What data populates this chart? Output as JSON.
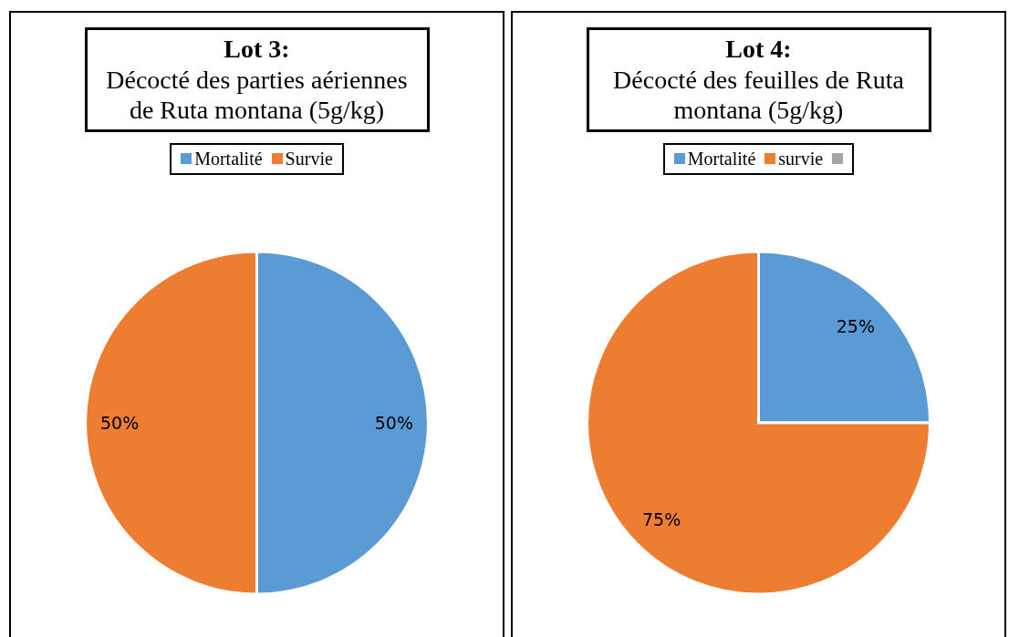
{
  "chart_data": [
    {
      "type": "pie",
      "title": "Lot 3:",
      "subtitle": "Décocté des parties aériennes de Ruta montana (5g/kg)",
      "categories": [
        "Mortalité",
        "Survie"
      ],
      "values": [
        50,
        50
      ],
      "colors": [
        "#5b9bd5",
        "#ed7d31"
      ],
      "value_labels": [
        "50%",
        "50%"
      ],
      "legend": "top"
    },
    {
      "type": "pie",
      "title": "Lot 4:",
      "subtitle": "Décocté des feuilles de Ruta montana (5g/kg)",
      "categories": [
        "Mortalité",
        "survie",
        null
      ],
      "values": [
        25,
        75,
        0
      ],
      "colors": [
        "#5b9bd5",
        "#ed7d31",
        "#a5a5a5"
      ],
      "value_labels": [
        "25%",
        "75%",
        null
      ],
      "legend": "top"
    }
  ]
}
